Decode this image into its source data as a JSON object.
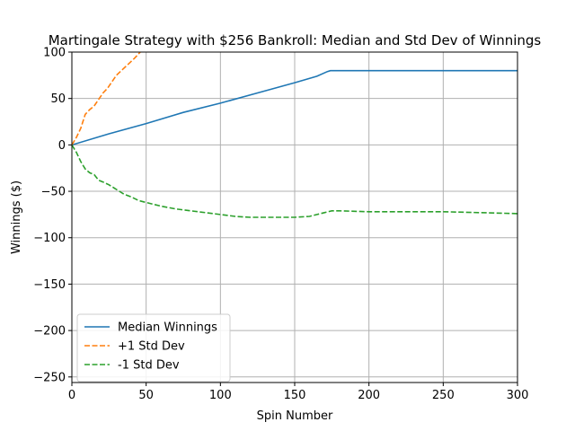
{
  "chart_data": {
    "type": "line",
    "title": "Martingale Strategy with $256 Bankroll: Median and Std Dev of Winnings",
    "xlabel": "Spin Number",
    "ylabel": "Winnings ($)",
    "xlim": [
      0,
      300
    ],
    "ylim": [
      -256,
      100
    ],
    "xticks": [
      0,
      50,
      100,
      150,
      200,
      250,
      300
    ],
    "yticks": [
      -250,
      -200,
      -150,
      -100,
      -50,
      0,
      50,
      100
    ],
    "grid": true,
    "legend_position": "lower-left",
    "series": [
      {
        "name": "Median Winnings",
        "color": "#1f77b4",
        "dash": "solid",
        "x": [
          0,
          25,
          50,
          75,
          100,
          125,
          150,
          165,
          172,
          174,
          200,
          250,
          300
        ],
        "y": [
          0,
          12,
          23,
          35,
          45,
          56,
          67,
          74,
          79,
          80,
          80,
          80,
          80
        ]
      },
      {
        "name": "+1 Std Dev",
        "color": "#ff7f0e",
        "dash": "dashed",
        "x": [
          0,
          3,
          6,
          9,
          12,
          15,
          18,
          21,
          24,
          27,
          30,
          34,
          38,
          42,
          46
        ],
        "y": [
          0,
          8,
          18,
          33,
          38,
          42,
          49,
          56,
          61,
          68,
          75,
          81,
          87,
          93,
          100
        ]
      },
      {
        "name": "-1 Std Dev",
        "color": "#2ca02c",
        "dash": "dashed",
        "x": [
          0,
          3,
          6,
          9,
          12,
          15,
          18,
          21,
          25,
          30,
          35,
          40,
          45,
          50,
          60,
          70,
          80,
          90,
          100,
          110,
          120,
          130,
          140,
          150,
          160,
          165,
          170,
          175,
          180,
          200,
          225,
          250,
          275,
          300
        ],
        "y": [
          0,
          -8,
          -18,
          -26,
          -30,
          -32,
          -38,
          -40,
          -43,
          -48,
          -53,
          -56,
          -60,
          -62,
          -66,
          -69,
          -71,
          -73,
          -75,
          -77,
          -78,
          -78,
          -78,
          -78,
          -77,
          -75,
          -73,
          -71,
          -71,
          -72,
          -72,
          -72,
          -73,
          -74
        ]
      }
    ]
  }
}
